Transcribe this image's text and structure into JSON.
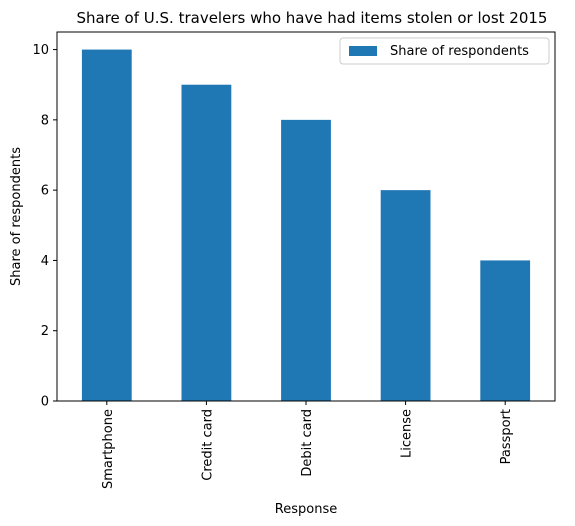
{
  "chart_data": {
    "type": "bar",
    "title": "Share of U.S. travelers who have had items stolen or lost 2015",
    "xlabel": "Response",
    "ylabel": "Share of respondents",
    "categories": [
      "Smartphone",
      "Credit card",
      "Debit card",
      "License",
      "Passport"
    ],
    "series": [
      {
        "name": "Share of respondents",
        "values": [
          10,
          9,
          8,
          6,
          4
        ],
        "color": "#1f77b4"
      }
    ],
    "ylim": [
      0,
      10.5
    ],
    "yticks": [
      0,
      2,
      4,
      6,
      8,
      10
    ],
    "grid": false,
    "legend": "top-right"
  }
}
